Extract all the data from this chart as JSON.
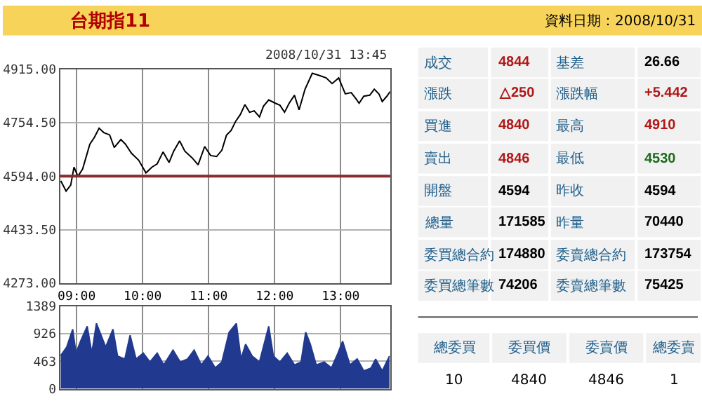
{
  "chart_data": [
    {
      "type": "line",
      "title": "台期指11",
      "annotations": [
        "2008/10/31 13:45"
      ],
      "color": "#000000",
      "grid": true,
      "x": [
        8.76,
        8.84,
        8.91,
        8.96,
        9.02,
        9.09,
        9.15,
        9.2,
        9.27,
        9.34,
        9.41,
        9.5,
        9.57,
        9.67,
        9.74,
        9.83,
        9.94,
        10.05,
        10.14,
        10.22,
        10.31,
        10.4,
        10.47,
        10.56,
        10.64,
        10.75,
        10.84,
        10.94,
        11.03,
        11.12,
        11.2,
        11.27,
        11.34,
        11.41,
        11.48,
        11.55,
        11.62,
        11.69,
        11.77,
        11.83,
        11.91,
        12.01,
        12.08,
        12.15,
        12.22,
        12.3,
        12.37,
        12.46,
        12.57,
        12.68,
        12.78,
        12.87,
        12.97,
        13.07,
        13.16,
        13.23,
        13.28,
        13.35,
        13.44,
        13.51,
        13.58,
        13.63,
        13.7,
        13.75
      ],
      "values": [
        4580,
        4549,
        4567,
        4621,
        4594,
        4615,
        4656,
        4690,
        4711,
        4738,
        4725,
        4718,
        4680,
        4704,
        4690,
        4663,
        4642,
        4604,
        4621,
        4631,
        4667,
        4635,
        4669,
        4700,
        4669,
        4649,
        4628,
        4683,
        4656,
        4653,
        4672,
        4717,
        4731,
        4759,
        4779,
        4809,
        4786,
        4790,
        4772,
        4804,
        4823,
        4813,
        4807,
        4786,
        4813,
        4837,
        4793,
        4855,
        4903,
        4896,
        4889,
        4872,
        4889,
        4841,
        4845,
        4827,
        4813,
        4834,
        4837,
        4855,
        4841,
        4818,
        4834,
        4848
      ],
      "xlim": [
        8.75,
        13.75
      ],
      "xticks": [
        {
          "value": 9,
          "label": "09:00"
        },
        {
          "value": 10,
          "label": "10:00"
        },
        {
          "value": 11,
          "label": "11:00"
        },
        {
          "value": 12,
          "label": "12:00"
        },
        {
          "value": 13,
          "label": "13:00"
        }
      ],
      "ylim": [
        4273,
        4915
      ],
      "yticks": [
        {
          "value": 4273,
          "label": "4273.00"
        },
        {
          "value": 4433.5,
          "label": "4433.50"
        },
        {
          "value": 4594,
          "label": "4594.00"
        },
        {
          "value": 4754.5,
          "label": "4754.50"
        },
        {
          "value": 4915,
          "label": "4915.00"
        }
      ],
      "ref_lines": [
        {
          "axis": "y",
          "value": 4594,
          "color": "#8b2a2a"
        }
      ]
    },
    {
      "type": "area",
      "color": "#213a8f",
      "grid": true,
      "tick_labels": "y",
      "x": [
        8.76,
        8.85,
        8.94,
        8.99,
        9.06,
        9.16,
        9.23,
        9.3,
        9.37,
        9.44,
        9.55,
        9.62,
        9.73,
        9.81,
        9.9,
        10.01,
        10.11,
        10.22,
        10.32,
        10.46,
        10.57,
        10.68,
        10.78,
        10.89,
        10.99,
        11.1,
        11.2,
        11.31,
        11.42,
        11.49,
        11.56,
        11.66,
        11.77,
        11.91,
        11.98,
        12.08,
        12.19,
        12.3,
        12.4,
        12.47,
        12.54,
        12.63,
        12.75,
        12.86,
        12.96,
        13.03,
        13.14,
        13.25,
        13.35,
        13.46,
        13.53,
        13.63,
        13.74
      ],
      "values": [
        560,
        700,
        1000,
        600,
        800,
        1050,
        600,
        1100,
        900,
        700,
        1000,
        550,
        500,
        900,
        500,
        600,
        450,
        600,
        400,
        650,
        450,
        500,
        650,
        400,
        550,
        350,
        450,
        950,
        1100,
        500,
        750,
        550,
        450,
        1050,
        550,
        450,
        600,
        400,
        450,
        950,
        750,
        400,
        450,
        350,
        600,
        800,
        400,
        500,
        300,
        350,
        500,
        300,
        550
      ],
      "xlim": [
        8.75,
        13.75
      ],
      "xticks": [
        {
          "value": 9,
          "label": null
        },
        {
          "value": 10,
          "label": null
        },
        {
          "value": 11,
          "label": null
        },
        {
          "value": 12,
          "label": null
        },
        {
          "value": 13,
          "label": null
        }
      ],
      "ylim": [
        0,
        1389
      ],
      "yticks": [
        0,
        463,
        926,
        1389
      ]
    },
    {
      "type": "other",
      "title": "資料日期：2008/10/31",
      "annotations": [
        "成交",
        "4844",
        "基差",
        "26.66",
        "漲跌",
        "△250",
        "漲跌幅",
        "+5.442",
        "買進",
        "4840",
        "最高",
        "4910",
        "賣出",
        "4846",
        "最低",
        "4530",
        "開盤",
        "4594",
        "昨收",
        "4594",
        "總量",
        "171585",
        "昨量",
        "70440",
        "委買總合約",
        "174880",
        "委賣總合約",
        "173754",
        "委買總筆數",
        "74206",
        "委賣總筆數",
        "75425",
        "總委買",
        "委買價",
        "委賣價",
        "總委賣",
        "10",
        "4840",
        "4846",
        "1"
      ],
      "colors": [
        "#1f5f8b",
        "#b01818",
        "#1f5f8b",
        "#000000",
        "#1f5f8b",
        "#b01818",
        "#1f5f8b",
        "#b01818",
        "#1f5f8b",
        "#b01818",
        "#1f5f8b",
        "#b01818",
        "#1f5f8b",
        "#b01818",
        "#1f5f8b",
        "#1e6b1e",
        "#1f5f8b",
        "#000000",
        "#1f5f8b",
        "#000000",
        "#1f5f8b",
        "#000000",
        "#1f5f8b",
        "#000000",
        "#1f5f8b",
        "#000000",
        "#1f5f8b",
        "#000000",
        "#1f5f8b",
        "#000000",
        "#1f5f8b",
        "#000000",
        "#1f5f8b",
        "#1f5f8b",
        "#1f5f8b",
        "#1f5f8b",
        "#000000",
        "#000000",
        "#000000",
        "#000000"
      ]
    }
  ]
}
